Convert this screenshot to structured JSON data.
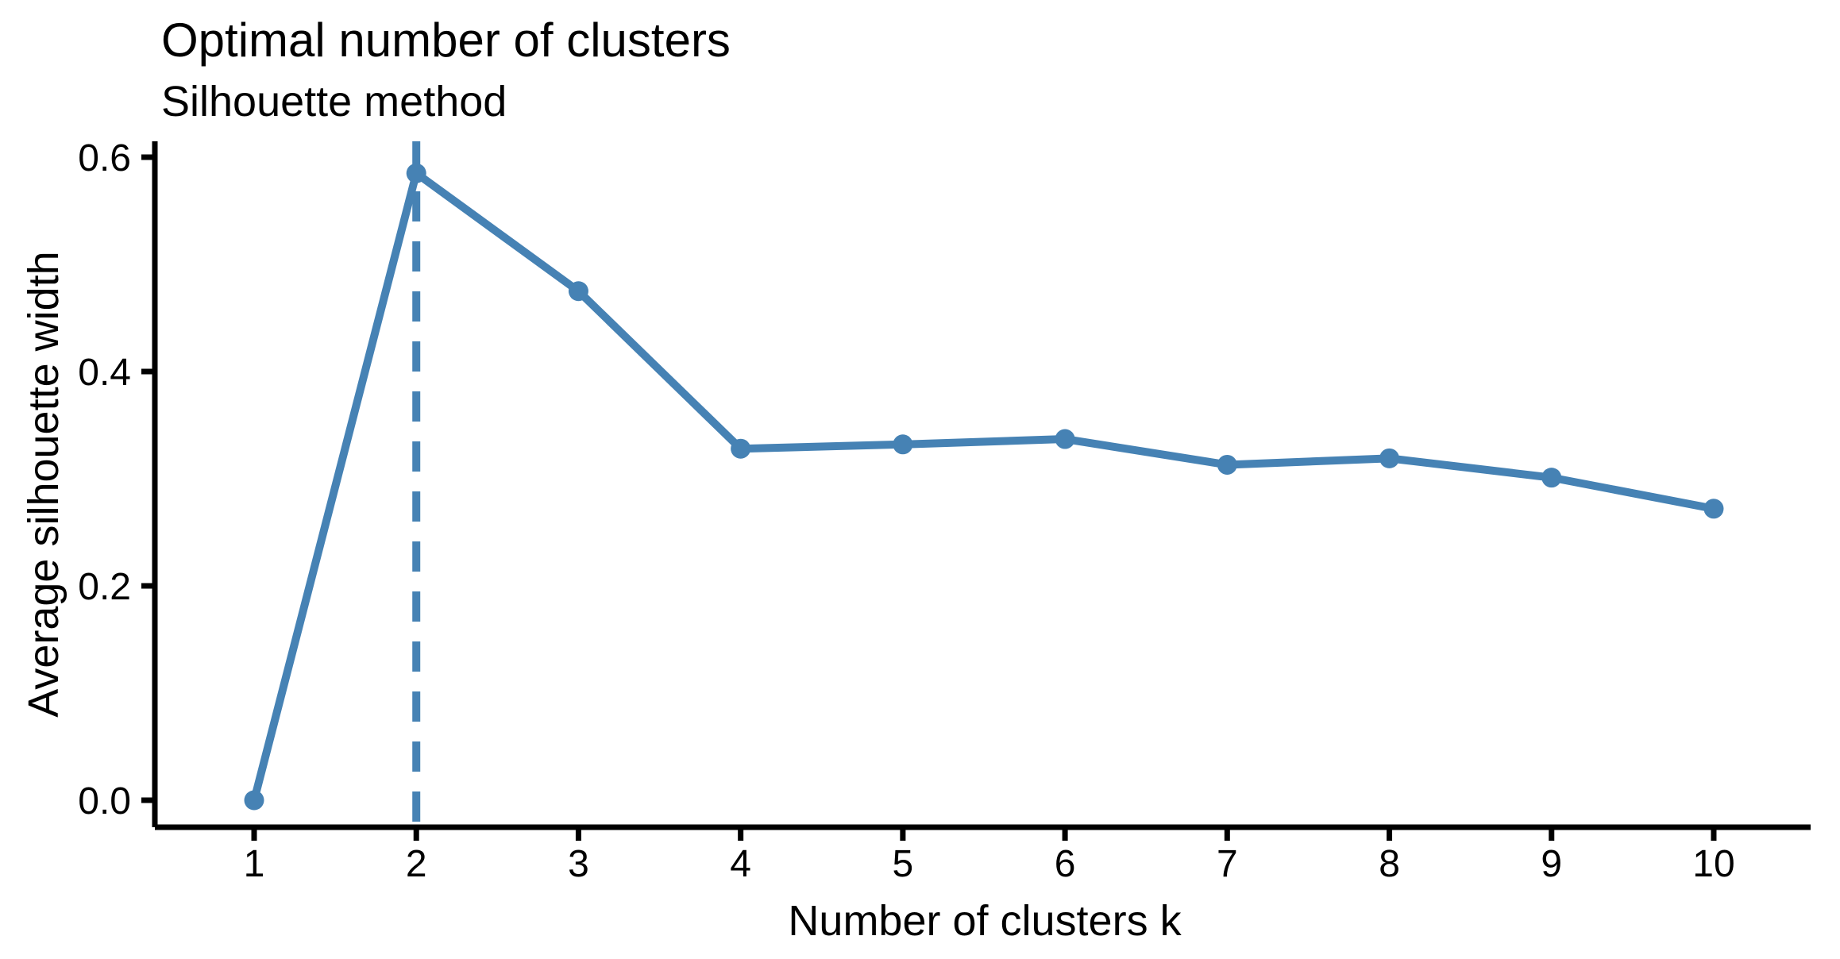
{
  "chart_data": {
    "type": "line",
    "title": "Optimal number of clusters",
    "subtitle": "Silhouette method",
    "xlabel": "Number of clusters k",
    "ylabel": "Average silhouette width",
    "x": [
      1,
      2,
      3,
      4,
      5,
      6,
      7,
      8,
      9,
      10
    ],
    "y": [
      0.0,
      0.585,
      0.475,
      0.328,
      0.332,
      0.337,
      0.313,
      0.319,
      0.301,
      0.272
    ],
    "series_name": "Average silhouette width",
    "x_tick_labels": [
      "1",
      "2",
      "3",
      "4",
      "5",
      "6",
      "7",
      "8",
      "9",
      "10"
    ],
    "y_tick_labels": [
      "0.0",
      "0.2",
      "0.4",
      "0.6"
    ],
    "y_tick_values": [
      0.0,
      0.2,
      0.4,
      0.6
    ],
    "xlim": [
      0.39,
      10.6
    ],
    "ylim": [
      -0.025,
      0.615
    ],
    "vline": {
      "x": 2,
      "style": "dashed"
    },
    "grid": false,
    "legend_position": "none",
    "marker": "circle",
    "colors": {
      "series": "#4682B4",
      "vline": "#4682B4",
      "axis": "#000000",
      "text": "#000000",
      "background": "#FFFFFF"
    }
  }
}
